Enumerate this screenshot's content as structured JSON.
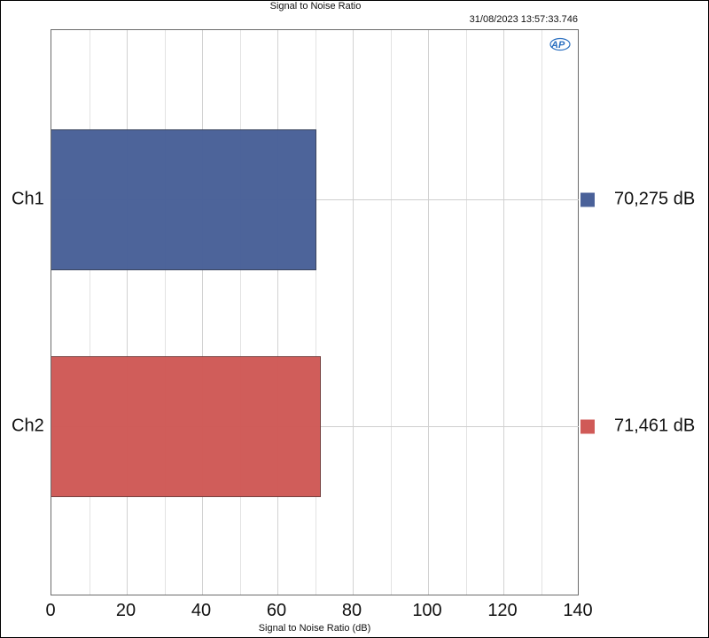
{
  "chart_data": {
    "type": "bar",
    "orientation": "horizontal",
    "title": "Signal to Noise Ratio",
    "timestamp": "31/08/2023 13:57:33.746",
    "categories": [
      "Ch1",
      "Ch2"
    ],
    "values": [
      70.275,
      71.461
    ],
    "value_labels": [
      "70,275 dB",
      "71,461 dB"
    ],
    "colors": [
      "#4a6199",
      "#d05a57"
    ],
    "xlabel": "Signal to Noise Ratio (dB)",
    "ylabel": "",
    "xlim": [
      0,
      140
    ],
    "xticks": [
      0,
      20,
      40,
      60,
      80,
      100,
      120,
      140
    ],
    "minor_grid_step": 10,
    "grid": true,
    "legend_position": "right"
  },
  "header": {
    "title": "Signal to Noise Ratio",
    "timestamp": "31/08/2023 13:57:33.746",
    "logo": "ap-logo"
  },
  "axis": {
    "x_label": "Signal to Noise Ratio (dB)",
    "ticks": [
      "0",
      "20",
      "40",
      "60",
      "80",
      "100",
      "120",
      "140"
    ]
  },
  "series": [
    {
      "name": "Ch1",
      "value": 70.275,
      "label": "70,275 dB",
      "color": "#4a6199"
    },
    {
      "name": "Ch2",
      "value": 71.461,
      "label": "71,461 dB",
      "color": "#d05a57"
    }
  ]
}
